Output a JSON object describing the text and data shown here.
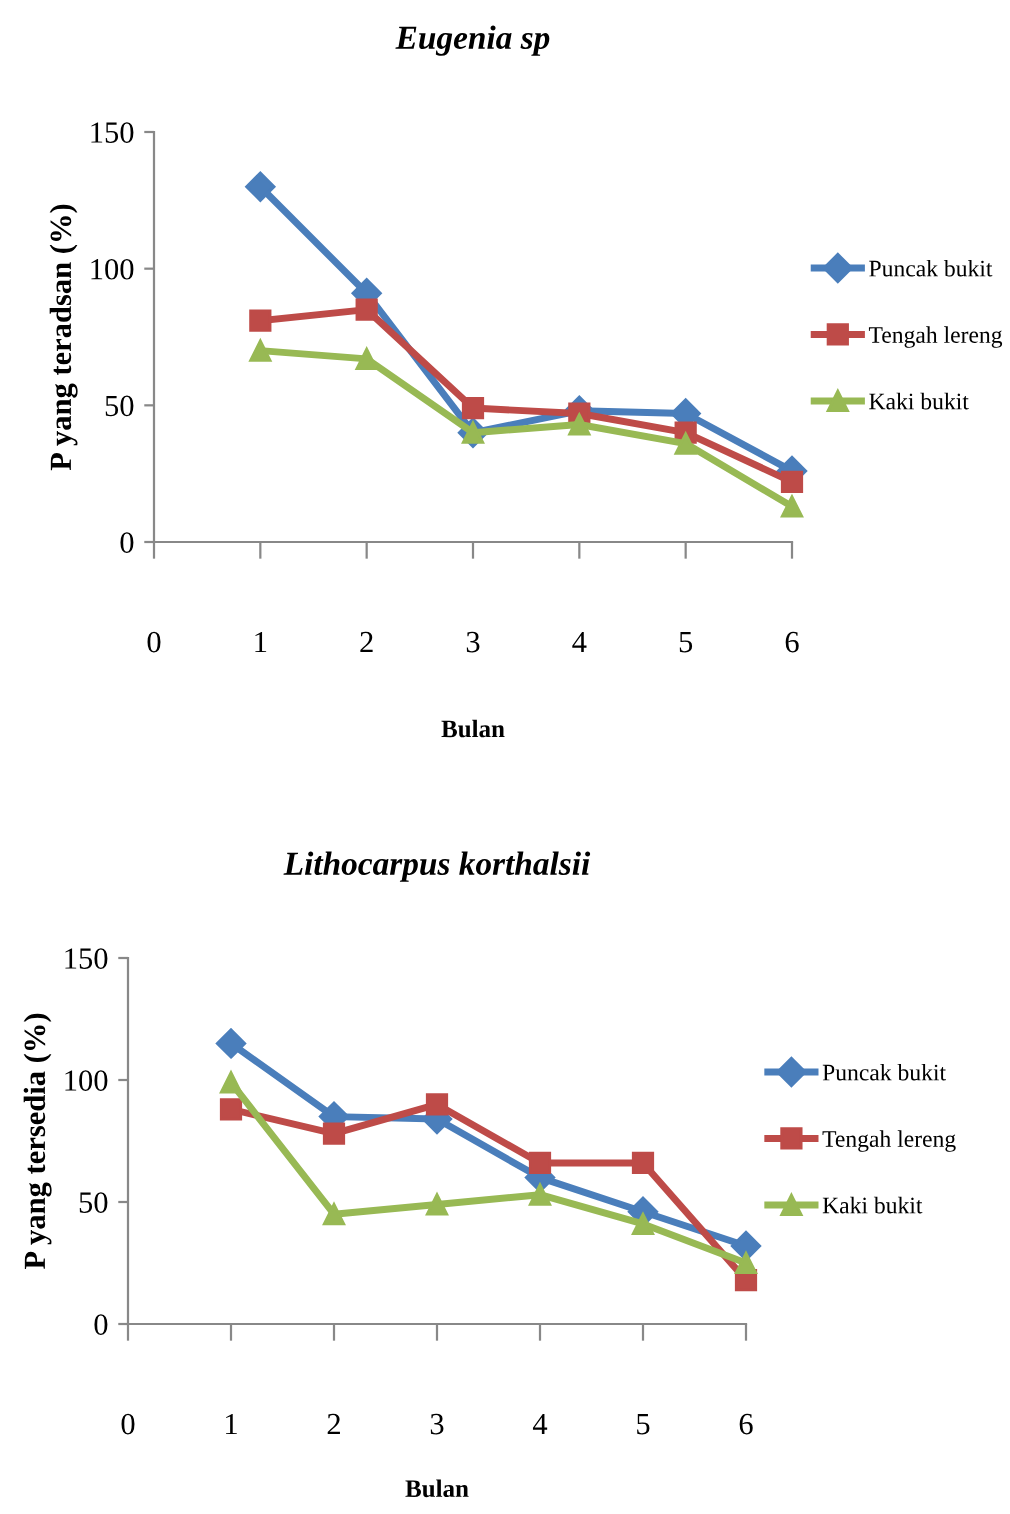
{
  "chart_data": [
    {
      "type": "line",
      "title": "Eugenia sp",
      "xlabel": "Bulan",
      "ylabel": "P yang teradsan (%)",
      "x": [
        1,
        2,
        3,
        4,
        5,
        6
      ],
      "xlim": [
        0,
        6
      ],
      "xticks": [
        0,
        1,
        2,
        3,
        4,
        5,
        6
      ],
      "ylim": [
        0,
        150
      ],
      "yticks": [
        0,
        50,
        100,
        150
      ],
      "grid": false,
      "legend": "right",
      "series": [
        {
          "name": "Puncak bukit",
          "color": "#4a7ebb",
          "marker": "diamond",
          "values": [
            130,
            91,
            40,
            48,
            47,
            26
          ]
        },
        {
          "name": "Tengah lereng",
          "color": "#be4b48",
          "marker": "square",
          "values": [
            81,
            85,
            49,
            47,
            40,
            22
          ]
        },
        {
          "name": "Kaki bukit",
          "color": "#98b954",
          "marker": "triangle",
          "values": [
            70,
            67,
            40,
            43,
            36,
            13
          ]
        }
      ]
    },
    {
      "type": "line",
      "title": "Lithocarpus korthalsii",
      "xlabel": "Bulan",
      "ylabel": "P yang tersedia (%)",
      "x": [
        1,
        2,
        3,
        4,
        5,
        6
      ],
      "xlim": [
        0,
        6
      ],
      "xticks": [
        0,
        1,
        2,
        3,
        4,
        5,
        6
      ],
      "ylim": [
        0,
        150
      ],
      "yticks": [
        0,
        50,
        100,
        150
      ],
      "grid": false,
      "legend": "right",
      "series": [
        {
          "name": "Puncak bukit",
          "color": "#4a7ebb",
          "marker": "diamond",
          "values": [
            115,
            85,
            84,
            60,
            46,
            32
          ]
        },
        {
          "name": "Tengah lereng",
          "color": "#be4b48",
          "marker": "square",
          "values": [
            88,
            78,
            90,
            66,
            66,
            18
          ]
        },
        {
          "name": "Kaki bukit",
          "color": "#98b954",
          "marker": "triangle",
          "values": [
            99,
            45,
            49,
            53,
            41,
            25
          ]
        }
      ]
    }
  ]
}
